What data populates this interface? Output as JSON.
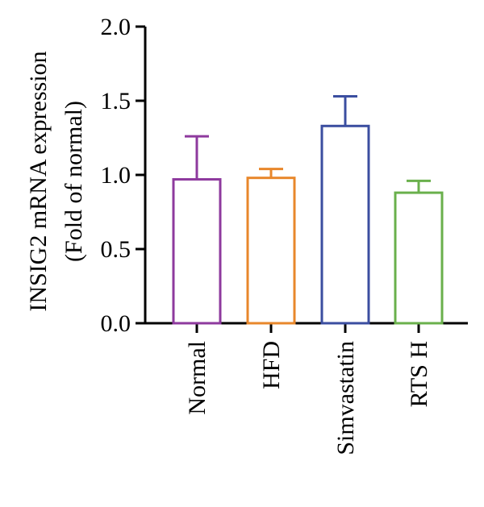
{
  "chart_data": {
    "type": "bar",
    "title": "",
    "xlabel": "",
    "ylabel_line1": "INSIG2 mRNA expression",
    "ylabel_line2": "(Fold of normal)",
    "ylim": [
      0,
      2.0
    ],
    "yticks": [
      0.0,
      0.5,
      1.0,
      1.5,
      2.0
    ],
    "ytick_labels": [
      "0.0",
      "0.5",
      "1.0",
      "1.5",
      "2.0"
    ],
    "categories": [
      "Normal",
      "HFD",
      "Simvastatin",
      "RTS H"
    ],
    "values": [
      0.97,
      0.98,
      1.33,
      0.88
    ],
    "errors": [
      0.29,
      0.06,
      0.2,
      0.08
    ],
    "colors": [
      "#8e3a9e",
      "#e8872b",
      "#3b4ea0",
      "#6ab04c"
    ],
    "grid": false,
    "legend": "none"
  }
}
